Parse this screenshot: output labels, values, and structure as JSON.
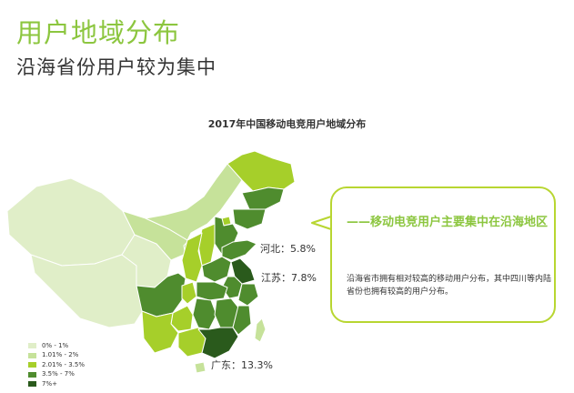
{
  "header": {
    "title": "用户地域分布",
    "subtitle": "沿海省份用户较为集中"
  },
  "map": {
    "title": "2017年中国移动电竞用户地域分布",
    "labels": {
      "hebei": "河北：5.8%",
      "jiangsu": "江苏：7.8%",
      "guangdong": "广东：13.3%"
    },
    "legend": [
      {
        "label": "0% - 1%",
        "color": "#e0eec8"
      },
      {
        "label": "1.01% - 2%",
        "color": "#c6e29a"
      },
      {
        "label": "2.01% - 3.5%",
        "color": "#a6cf2a"
      },
      {
        "label": "3.5% - 7%",
        "color": "#4f8c2e"
      },
      {
        "label": "7%+",
        "color": "#2a5a1c"
      }
    ]
  },
  "callout": {
    "heading": "——移动电竞用户主要集中在沿海地区",
    "body": "沿海省市拥有相对较高的移动用户分布，其中四川等内陆省份也拥有较高的用户分布。"
  },
  "colors": {
    "accent": "#8cc63f",
    "callout_border": "#b8d631",
    "tier1": "#e0eec8",
    "tier2": "#c6e29a",
    "tier3": "#a6cf2a",
    "tier4": "#4f8c2e",
    "tier5": "#2a5a1c"
  }
}
